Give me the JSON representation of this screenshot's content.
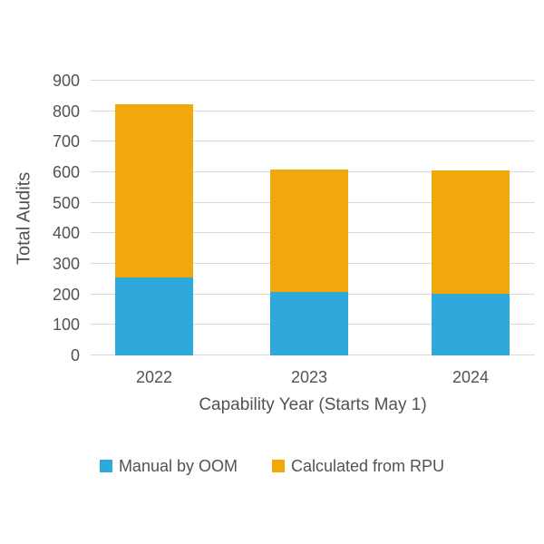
{
  "chart_data": {
    "type": "bar",
    "stacked": true,
    "title": "",
    "categories": [
      "2022",
      "2023",
      "2024"
    ],
    "series": [
      {
        "name": "Manual by OOM",
        "color": "#2FA8DB",
        "values": [
          256,
          209,
          201
        ]
      },
      {
        "name": "Calculated from RPU",
        "color": "#F0A80A",
        "values": [
          566,
          399,
          404
        ]
      }
    ],
    "xlabel": "Capability Year (Starts May 1)",
    "ylabel": "Total Audits",
    "ylim": [
      0,
      900
    ],
    "ytick_step": 100,
    "yticks": [
      "0",
      "100",
      "200",
      "300",
      "400",
      "500",
      "600",
      "700",
      "800",
      "900"
    ],
    "grid": true,
    "legend_position": "bottom",
    "colors": {
      "gridline": "#D9D9D9",
      "text": "#525256",
      "background": "#FFFFFF"
    }
  }
}
